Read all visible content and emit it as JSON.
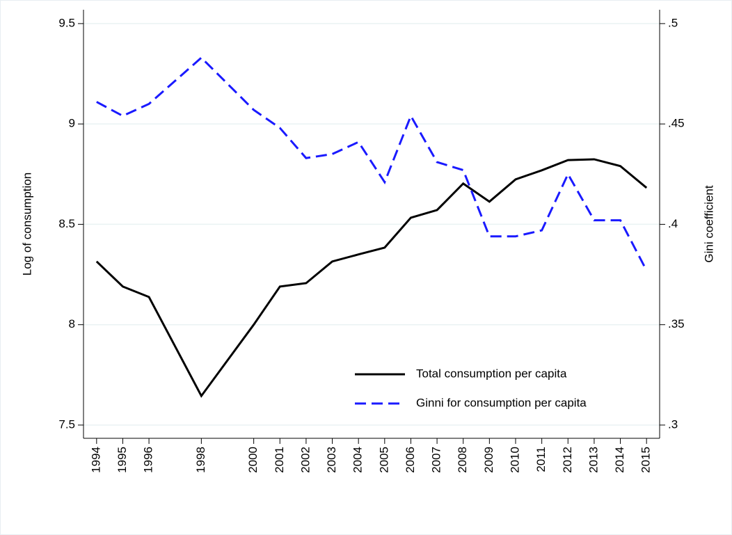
{
  "chart_data": {
    "type": "line",
    "x": [
      1994,
      1995,
      1996,
      1998,
      2000,
      2001,
      2002,
      2003,
      2004,
      2005,
      2006,
      2007,
      2008,
      2009,
      2010,
      2011,
      2012,
      2013,
      2014,
      2015
    ],
    "xlim": [
      1993.5,
      2015.5
    ],
    "xticks": [
      1994,
      1995,
      1996,
      1998,
      2000,
      2001,
      2002,
      2003,
      2004,
      2005,
      2006,
      2007,
      2008,
      2009,
      2010,
      2011,
      2012,
      2013,
      2014,
      2015
    ],
    "y_label": "Log of consumption",
    "y2_label": "Gini coefficient",
    "ylim": [
      7.434,
      9.569
    ],
    "yticks": [
      7.5,
      8,
      8.5,
      9,
      9.5
    ],
    "y2lim": [
      0.2934,
      0.5069
    ],
    "y2ticks": [
      {
        "value": 0.3,
        "label": ".3"
      },
      {
        "value": 0.35,
        "label": ".35"
      },
      {
        "value": 0.4,
        "label": ".4"
      },
      {
        "value": 0.45,
        "label": ".45"
      },
      {
        "value": 0.5,
        "label": ".5"
      }
    ],
    "grid": true,
    "legend": "lower right",
    "series": [
      {
        "name": "Total consumption per capita",
        "color": "#000000",
        "line_style": "solid",
        "axis": "y",
        "values": [
          8.315,
          8.19,
          8.138,
          7.645,
          8.0,
          8.19,
          8.207,
          8.315,
          8.35,
          8.384,
          8.533,
          8.571,
          8.703,
          8.613,
          8.724,
          8.769,
          8.82,
          8.824,
          8.79,
          8.682
        ]
      },
      {
        "name": "Ginni for consumption per capita",
        "color": "#1a1aff",
        "line_style": "dashed",
        "axis": "y2",
        "values": [
          0.461,
          0.454,
          0.46,
          0.483,
          0.457,
          0.448,
          0.433,
          0.435,
          0.441,
          0.421,
          0.454,
          0.431,
          0.427,
          0.394,
          0.394,
          0.397,
          0.425,
          0.402,
          0.402,
          0.377
        ]
      }
    ]
  }
}
